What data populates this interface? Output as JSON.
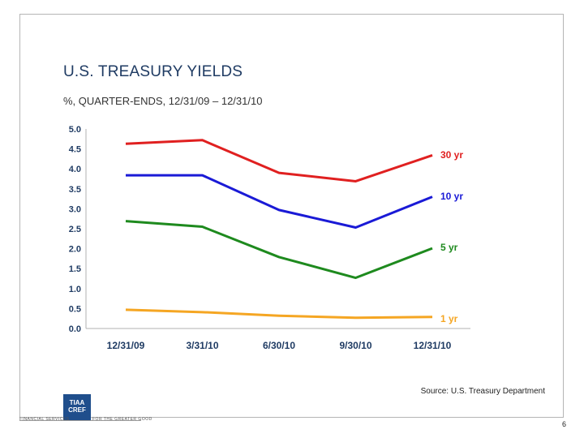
{
  "slide": {
    "title": "U.S. TREASURY YIELDS",
    "subtitle": "%, QUARTER-ENDS, 12/31/09 – 12/31/10",
    "source": "Source: U.S. Treasury Department",
    "page_number": "6"
  },
  "footer": {
    "logo_line1": "TIAA",
    "logo_line2": "CREF",
    "left_text": "FINANCIAL SERVICES",
    "mid_text": "FOR THE GREATER GOOD"
  },
  "chart_data": {
    "type": "line",
    "title": "",
    "xlabel": "",
    "ylabel": "",
    "categories": [
      "12/31/09",
      "3/31/10",
      "6/30/10",
      "9/30/10",
      "12/31/10"
    ],
    "ylim": [
      0,
      5
    ],
    "yticks": [
      "5.0",
      "4.5",
      "4.0",
      "3.5",
      "3.0",
      "2.5",
      "2.0",
      "1.5",
      "1.0",
      "0.5",
      "0.0"
    ],
    "grid": false,
    "series": [
      {
        "name": "30 yr",
        "values": [
          4.63,
          4.72,
          3.9,
          3.69,
          4.34
        ],
        "color": "#e02020"
      },
      {
        "name": "10 yr",
        "values": [
          3.84,
          3.84,
          2.97,
          2.53,
          3.3
        ],
        "color": "#1a1ad6"
      },
      {
        "name": "5 yr",
        "values": [
          2.69,
          2.55,
          1.79,
          1.27,
          2.01
        ],
        "color": "#1e8a1e"
      },
      {
        "name": "1 yr",
        "values": [
          0.47,
          0.41,
          0.32,
          0.27,
          0.29
        ],
        "color": "#f5a623"
      }
    ]
  }
}
